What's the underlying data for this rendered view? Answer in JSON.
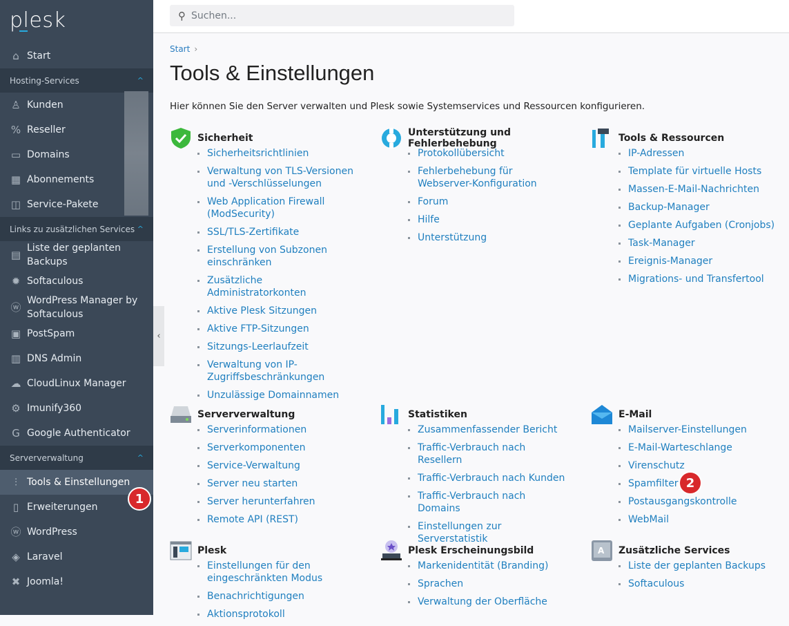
{
  "logo": "plesk",
  "search": {
    "placeholder": "Suchen..."
  },
  "sidebar": [
    {
      "type": "item",
      "label": "Start",
      "icon": "⌂",
      "name": "home-icon"
    },
    {
      "type": "head",
      "label": "Hosting-Services"
    },
    {
      "type": "item",
      "label": "Kunden",
      "icon": "♙",
      "name": "user-icon"
    },
    {
      "type": "item",
      "label": "Reseller",
      "icon": "%",
      "name": "percent-icon"
    },
    {
      "type": "item",
      "label": "Domains",
      "icon": "▭",
      "name": "monitor-icon"
    },
    {
      "type": "item",
      "label": "Abonnements",
      "icon": "▦",
      "name": "grid-icon"
    },
    {
      "type": "item",
      "label": "Service-Pakete",
      "icon": "◫",
      "name": "book-icon"
    },
    {
      "type": "head",
      "label": "Links zu zusätzlichen Services"
    },
    {
      "type": "item",
      "label": "Liste der geplanten Backups",
      "icon": "▤",
      "name": "backup-icon"
    },
    {
      "type": "item",
      "label": "Softaculous",
      "icon": "✹",
      "name": "softaculous-icon"
    },
    {
      "type": "item",
      "label": "WordPress Manager by Softaculous",
      "icon": "ⓦ",
      "name": "wordpress-icon"
    },
    {
      "type": "item",
      "label": "PostSpam",
      "icon": "▣",
      "name": "postspam-icon"
    },
    {
      "type": "item",
      "label": "DNS Admin",
      "icon": "▥",
      "name": "dns-icon"
    },
    {
      "type": "item",
      "label": "CloudLinux Manager",
      "icon": "☁",
      "name": "cloudlinux-icon"
    },
    {
      "type": "item",
      "label": "Imunify360",
      "icon": "⚙",
      "name": "imunify-icon"
    },
    {
      "type": "item",
      "label": "Google Authenticator",
      "icon": "G",
      "name": "google-icon"
    },
    {
      "type": "head",
      "label": "Serververwaltung"
    },
    {
      "type": "item",
      "label": "Tools & Einstellungen",
      "icon": "⫶",
      "name": "sliders-icon",
      "active": true
    },
    {
      "type": "item",
      "label": "Erweiterungen",
      "icon": "▯",
      "name": "extensions-icon"
    },
    {
      "type": "item",
      "label": "WordPress",
      "icon": "ⓦ",
      "name": "wordpress-icon"
    },
    {
      "type": "item",
      "label": "Laravel",
      "icon": "◈",
      "name": "laravel-icon"
    },
    {
      "type": "item",
      "label": "Joomla!",
      "icon": "✖",
      "name": "joomla-icon"
    }
  ],
  "breadcrumb": {
    "start": "Start",
    "sep": "›"
  },
  "title": "Tools & Einstellungen",
  "description": "Hier können Sie den Server verwalten und Plesk sowie Systemservices und Ressourcen konfigurieren.",
  "sections": [
    {
      "title": "Sicherheit",
      "icon": "shield-icon",
      "links": [
        "Sicherheitsrichtlinien",
        "Verwaltung von TLS-Versionen und -Verschlüsselungen",
        "Web Application Firewall (ModSecurity)",
        "SSL/TLS-Zertifikate",
        "Erstellung von Subzonen einschränken",
        "Zusätzliche Administratorkonten",
        "Aktive Plesk Sitzungen",
        "Aktive FTP-Sitzungen",
        "Sitzungs-Leerlaufzeit",
        "Verwaltung von IP-Zugriffsbeschränkungen",
        "Unzulässige Domainnamen"
      ]
    },
    {
      "title": "Unterstützung und Fehlerbehebung",
      "icon": "lifebuoy-icon",
      "links": [
        "Protokollübersicht",
        "Fehlerbehebung für Webserver-Konfiguration",
        "Forum",
        "Hilfe",
        "Unterstützung"
      ]
    },
    {
      "title": "Tools & Ressourcen",
      "icon": "tools-icon",
      "links": [
        "IP-Adressen",
        "Template für virtuelle Hosts",
        "Massen-E-Mail-Nachrichten",
        "Backup-Manager",
        "Geplante Aufgaben (Cronjobs)",
        "Task-Manager",
        "Ereignis-Manager",
        "Migrations- und Transfertool"
      ]
    },
    {
      "title": "Serververwaltung",
      "icon": "server-icon",
      "links": [
        "Serverinformationen",
        "Serverkomponenten",
        "Service-Verwaltung",
        "Server neu starten",
        "Server herunterfahren",
        "Remote API (REST)"
      ]
    },
    {
      "title": "Statistiken",
      "icon": "bar-chart-icon",
      "links": [
        "Zusammenfassender Bericht",
        "Traffic-Verbrauch nach Resellern",
        "Traffic-Verbrauch nach Kunden",
        "Traffic-Verbrauch nach Domains",
        "Einstellungen zur Serverstatistik"
      ]
    },
    {
      "title": "E-Mail",
      "icon": "envelope-icon",
      "links": [
        "Mailserver-Einstellungen",
        "E-Mail-Warteschlange",
        "Virenschutz",
        "Spamfilter",
        "Postausgangskontrolle",
        "WebMail"
      ]
    },
    {
      "title": "Plesk",
      "icon": "plesk-window-icon",
      "links": [
        "Einstellungen für den eingeschränkten Modus",
        "Benachrichtigungen",
        "Aktionsprotokoll"
      ]
    },
    {
      "title": "Plesk Erscheinungsbild",
      "icon": "branding-icon",
      "links": [
        "Markenidentität (Branding)",
        "Sprachen",
        "Verwaltung der Oberfläche"
      ]
    },
    {
      "title": "Zusätzliche Services",
      "icon": "additional-services-icon",
      "links": [
        "Liste der geplanten Backups",
        "Softaculous"
      ]
    }
  ],
  "badges": [
    "1",
    "2"
  ],
  "colors": {
    "sidebar": "#3b4857",
    "link": "#1f7fbf",
    "badge": "#d8282b"
  }
}
